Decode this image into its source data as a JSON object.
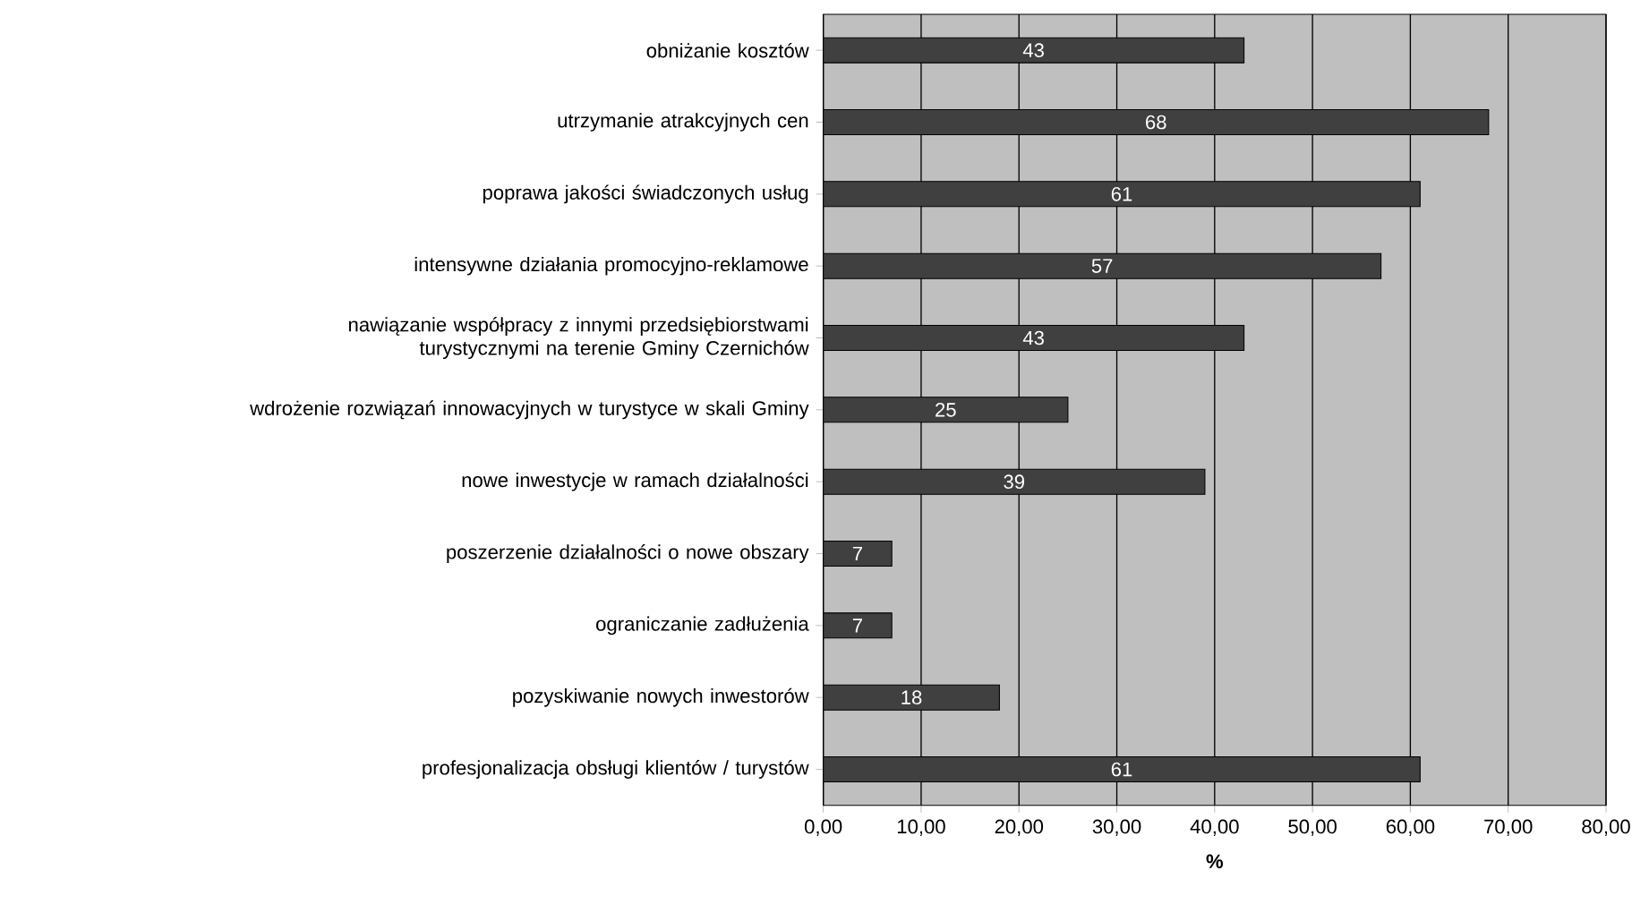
{
  "chart_data": {
    "type": "bar",
    "orientation": "horizontal",
    "xlabel": "%",
    "categories": [
      "obniżanie kosztów",
      "utrzymanie atrakcyjnych cen",
      "poprawa jakości świadczonych usług",
      "intensywne działania promocyjno-reklamowe",
      "nawiązanie współpracy z innymi przedsiębiorstwami turystycznymi na terenie Gminy Czernichów",
      "wdrożenie rozwiązań innowacyjnych w turystyce w skali Gminy",
      "nowe inwestycje w ramach działalności",
      "poszerzenie działalności o nowe obszary",
      "ograniczanie zadłużenia",
      "pozyskiwanie nowych inwestorów",
      "profesjonalizacja obsługi klientów / turystów"
    ],
    "values": [
      43,
      68,
      61,
      57,
      43,
      25,
      39,
      7,
      7,
      18,
      61
    ],
    "color": "#404040",
    "data_labels": true,
    "grid": "x",
    "xlim": [
      0,
      80
    ],
    "xticks": [
      {
        "value": 0,
        "label": "0,00"
      },
      {
        "value": 10,
        "label": "10,00"
      },
      {
        "value": 20,
        "label": "20,00"
      },
      {
        "value": 30,
        "label": "30,00"
      },
      {
        "value": 40,
        "label": "40,00"
      },
      {
        "value": 50,
        "label": "50,00"
      },
      {
        "value": 60,
        "label": "60,00"
      },
      {
        "value": 70,
        "label": "70,00"
      },
      {
        "value": 80,
        "label": "80,00"
      }
    ]
  }
}
